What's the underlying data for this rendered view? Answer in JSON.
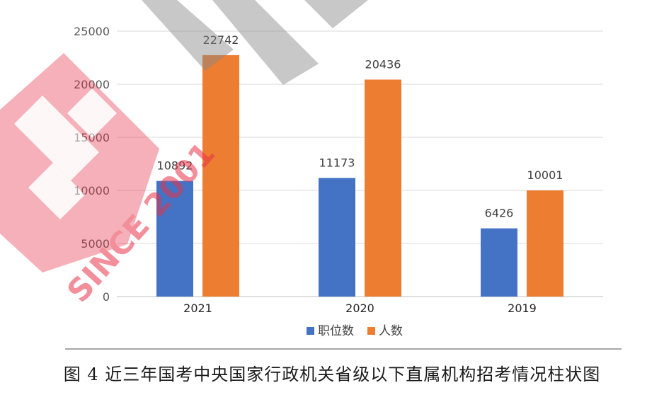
{
  "chart_data": {
    "type": "bar",
    "categories": [
      "2021",
      "2020",
      "2019"
    ],
    "series": [
      {
        "name": "职位数",
        "color": "#4472c4",
        "values": [
          10892,
          11173,
          6426
        ]
      },
      {
        "name": "人数",
        "color": "#ed7d31",
        "values": [
          22742,
          20436,
          10001
        ]
      }
    ],
    "ylim": [
      0,
      25000
    ],
    "yticks": [
      0,
      5000,
      10000,
      15000,
      20000,
      25000
    ],
    "grid": true,
    "legend": "bottom-center"
  },
  "caption": "图 4 近三年国考中央国家行政机关省级以下直属机构招考情况柱状图",
  "watermark": {
    "text": "SINCE 2001",
    "color": "#e8334a"
  }
}
